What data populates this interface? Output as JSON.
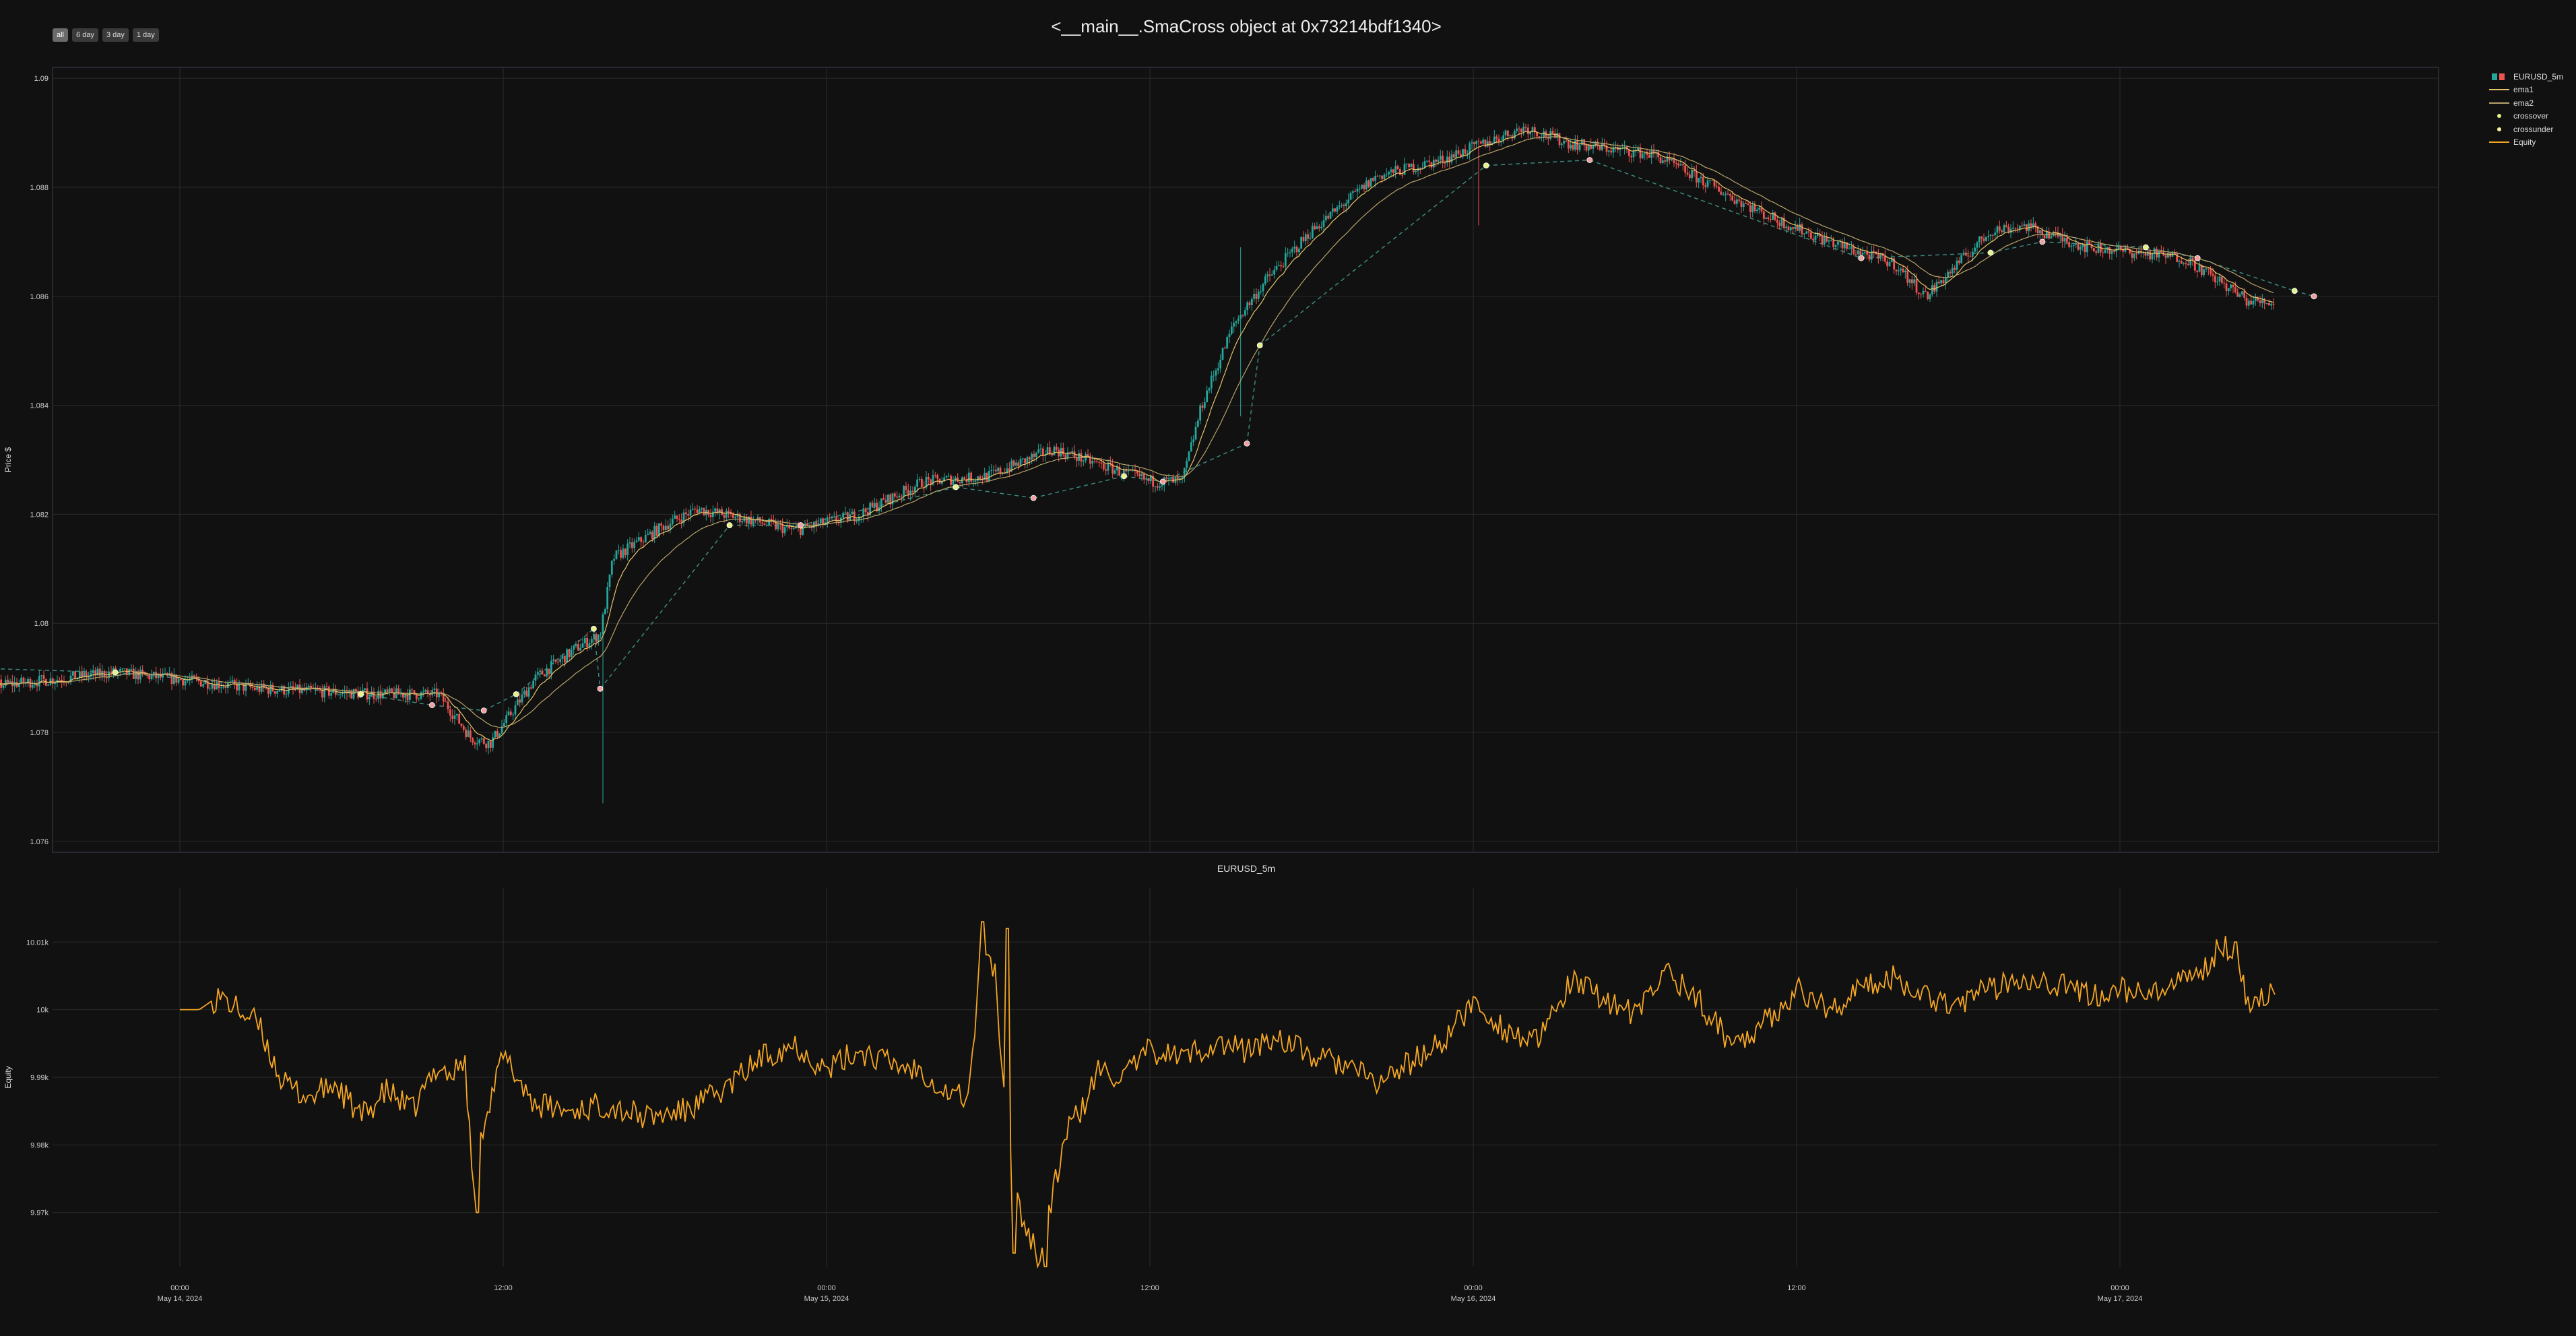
{
  "title": "<__main__.SmaCross object at 0x73214bdf1340>",
  "range_buttons": [
    "all",
    "6 day",
    "3 day",
    "1 day"
  ],
  "range_active": "all",
  "subtitle": "EURUSD_5m",
  "colors": {
    "background": "#111111",
    "grid": "#2a2a2a",
    "candle_up": "#26a69a",
    "candle_down": "#ef5350",
    "ema1": "#e8c46a",
    "ema2": "#b8a36a",
    "crossover": "#e6f08a",
    "crossunder": "#f5f59a",
    "equity": "#f5a623",
    "trade_line": "#3a8a7f"
  },
  "legend": [
    {
      "label": "EURUSD_5m",
      "kind": "candle"
    },
    {
      "label": "ema1",
      "kind": "line",
      "color": "#e8c46a"
    },
    {
      "label": "ema2",
      "kind": "line",
      "color": "#b8a36a"
    },
    {
      "label": "crossover",
      "kind": "dot",
      "color": "#e6f08a"
    },
    {
      "label": "crossunder",
      "kind": "dot",
      "color": "#f5f59a"
    },
    {
      "label": "Equity",
      "kind": "line",
      "color": "#f5a623"
    }
  ],
  "chart_data": [
    {
      "type": "candlestick",
      "series_name": "EURUSD_5m",
      "ylabel": "Price $",
      "yticks": [
        "1.076",
        "1.078",
        "1.08",
        "1.082",
        "1.084",
        "1.086",
        "1.088",
        "1.09"
      ],
      "ylim": [
        1.0758,
        1.0902
      ],
      "x_start_days": -0.45,
      "x_end_days": 3.24,
      "grid": true,
      "legend_position": "top-right, outside",
      "anchors": [
        [
          -0.42,
          1.079
        ],
        [
          -0.38,
          1.0793
        ],
        [
          -0.35,
          1.0788
        ],
        [
          -0.25,
          1.0789
        ],
        [
          -0.1,
          1.0791
        ],
        [
          0.05,
          1.0789
        ],
        [
          0.12,
          1.0788
        ],
        [
          0.3,
          1.0787
        ],
        [
          0.4,
          1.0787
        ],
        [
          0.45,
          1.0779
        ],
        [
          0.48,
          1.0778
        ],
        [
          0.55,
          1.079
        ],
        [
          0.62,
          1.0796
        ],
        [
          0.65,
          1.0798
        ],
        [
          0.67,
          1.0812
        ],
        [
          0.75,
          1.0818
        ],
        [
          0.8,
          1.0821
        ],
        [
          0.88,
          1.0819
        ],
        [
          0.95,
          1.0817
        ],
        [
          1.05,
          1.082
        ],
        [
          1.15,
          1.0826
        ],
        [
          1.25,
          1.0827
        ],
        [
          1.35,
          1.0832
        ],
        [
          1.5,
          1.0826
        ],
        [
          1.55,
          1.0826
        ],
        [
          1.58,
          1.084
        ],
        [
          1.63,
          1.0855
        ],
        [
          1.68,
          1.0863
        ],
        [
          1.75,
          1.0872
        ],
        [
          1.85,
          1.0882
        ],
        [
          1.95,
          1.0885
        ],
        [
          2.08,
          1.0891
        ],
        [
          2.15,
          1.0888
        ],
        [
          2.28,
          1.0886
        ],
        [
          2.45,
          1.0875
        ],
        [
          2.55,
          1.087
        ],
        [
          2.65,
          1.0866
        ],
        [
          2.7,
          1.086
        ],
        [
          2.8,
          1.0872
        ],
        [
          2.85,
          1.0873
        ],
        [
          2.95,
          1.0869
        ],
        [
          3.1,
          1.0867
        ],
        [
          3.2,
          1.0859
        ],
        [
          3.24,
          1.0859
        ]
      ],
      "spikes": [
        {
          "x": 0.655,
          "low": 1.0767,
          "high": 1.0802
        },
        {
          "x": 1.64,
          "low": 1.0838,
          "high": 1.0869
        },
        {
          "x": 2.01,
          "low": 1.0873,
          "high": 1.088
        }
      ],
      "crossovers": [
        [
          -0.4,
          1.079
        ],
        [
          -0.1,
          1.0791
        ],
        [
          0.28,
          1.0787
        ],
        [
          0.52,
          1.0787
        ],
        [
          0.64,
          1.0799
        ],
        [
          0.85,
          1.0818
        ],
        [
          1.2,
          1.0825
        ],
        [
          1.46,
          1.0827
        ],
        [
          1.67,
          1.0851
        ],
        [
          2.02,
          1.0884
        ],
        [
          2.8,
          1.0868
        ],
        [
          3.04,
          1.0869
        ],
        [
          3.27,
          1.0861
        ]
      ],
      "crossunders": [
        [
          -0.38,
          1.0792
        ],
        [
          0.39,
          1.0785
        ],
        [
          0.47,
          1.0784
        ],
        [
          0.65,
          1.0788
        ],
        [
          0.96,
          1.0818
        ],
        [
          1.32,
          1.0823
        ],
        [
          1.52,
          1.0826
        ],
        [
          1.65,
          1.0833
        ],
        [
          2.18,
          1.0885
        ],
        [
          2.6,
          1.0867
        ],
        [
          2.88,
          1.087
        ],
        [
          3.12,
          1.0867
        ],
        [
          3.3,
          1.086
        ]
      ]
    },
    {
      "type": "line",
      "series_name": "Equity",
      "ylabel": "Equity",
      "yticks": [
        "9.97k",
        "9.98k",
        "9.99k",
        "10k",
        "10.01k"
      ],
      "ylim": [
        9962,
        10018
      ],
      "xticks": [
        {
          "day": 0,
          "time": "00:00",
          "date": "May 14, 2024"
        },
        {
          "day": 0.5,
          "time": "12:00",
          "date": ""
        },
        {
          "day": 1,
          "time": "00:00",
          "date": "May 15, 2024"
        },
        {
          "day": 1.5,
          "time": "12:00",
          "date": ""
        },
        {
          "day": 2,
          "time": "00:00",
          "date": "May 16, 2024"
        },
        {
          "day": 2.5,
          "time": "12:00",
          "date": ""
        },
        {
          "day": 3,
          "time": "00:00",
          "date": "May 17, 2024"
        }
      ],
      "anchors": [
        [
          0.0,
          10000
        ],
        [
          0.03,
          10000
        ],
        [
          0.06,
          10002
        ],
        [
          0.09,
          10000
        ],
        [
          0.12,
          9998
        ],
        [
          0.16,
          9989
        ],
        [
          0.2,
          9987
        ],
        [
          0.24,
          9989
        ],
        [
          0.28,
          9984
        ],
        [
          0.32,
          9988
        ],
        [
          0.36,
          9985
        ],
        [
          0.4,
          9992
        ],
        [
          0.42,
          9990
        ],
        [
          0.44,
          9993
        ],
        [
          0.455,
          9972
        ],
        [
          0.47,
          9984
        ],
        [
          0.5,
          9993
        ],
        [
          0.55,
          9986
        ],
        [
          0.6,
          9985
        ],
        [
          0.66,
          9986
        ],
        [
          0.72,
          9984
        ],
        [
          0.78,
          9985
        ],
        [
          0.84,
          9988
        ],
        [
          0.9,
          9993
        ],
        [
          0.95,
          9995
        ],
        [
          1.0,
          9991
        ],
        [
          1.05,
          9994
        ],
        [
          1.1,
          9992
        ],
        [
          1.15,
          9991
        ],
        [
          1.18,
          9988
        ],
        [
          1.22,
          9987
        ],
        [
          1.24,
          10010
        ],
        [
          1.26,
          10006
        ],
        [
          1.28,
          9980
        ],
        [
          1.3,
          9970
        ],
        [
          1.33,
          9963
        ],
        [
          1.37,
          9982
        ],
        [
          1.4,
          9986
        ],
        [
          1.42,
          9991
        ],
        [
          1.46,
          9990
        ],
        [
          1.5,
          9994
        ],
        [
          1.55,
          9993
        ],
        [
          1.6,
          9995
        ],
        [
          1.65,
          9994
        ],
        [
          1.7,
          9996
        ],
        [
          1.75,
          9993
        ],
        [
          1.8,
          9992
        ],
        [
          1.85,
          9989
        ],
        [
          1.9,
          9992
        ],
        [
          1.95,
          9995
        ],
        [
          2.0,
          10001
        ],
        [
          2.05,
          9997
        ],
        [
          2.1,
          9995
        ],
        [
          2.15,
          10004
        ],
        [
          2.2,
          10002
        ],
        [
          2.25,
          9999
        ],
        [
          2.3,
          10006
        ],
        [
          2.35,
          10001
        ],
        [
          2.4,
          9995
        ],
        [
          2.45,
          9998
        ],
        [
          2.5,
          10003
        ],
        [
          2.55,
          10000
        ],
        [
          2.6,
          10003
        ],
        [
          2.65,
          10005
        ],
        [
          2.7,
          10002
        ],
        [
          2.75,
          10001
        ],
        [
          2.8,
          10003
        ],
        [
          2.85,
          10005
        ],
        [
          2.9,
          10004
        ],
        [
          2.95,
          10002
        ],
        [
          3.0,
          10003
        ],
        [
          3.05,
          10002
        ],
        [
          3.1,
          10004
        ],
        [
          3.13,
          10006
        ],
        [
          3.16,
          10010
        ],
        [
          3.18,
          10007
        ],
        [
          3.2,
          10001
        ],
        [
          3.24,
          10003
        ]
      ],
      "dips": [
        {
          "x": 0.46,
          "value": 9970
        },
        {
          "x": 1.29,
          "value": 9964
        },
        {
          "x": 1.34,
          "value": 9962
        }
      ],
      "peaks": [
        {
          "x": 1.24,
          "value": 10013
        },
        {
          "x": 1.28,
          "value": 10012
        },
        {
          "x": 3.18,
          "value": 10010
        }
      ]
    }
  ]
}
